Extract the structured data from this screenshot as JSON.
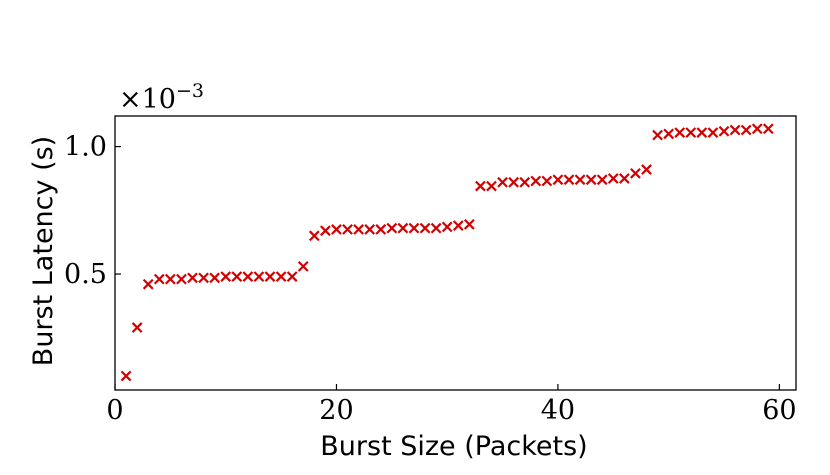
{
  "chart_data": {
    "type": "scatter",
    "title": "",
    "xlabel": "Burst Size (Packets)",
    "ylabel": "Burst Latency (s)",
    "scale_factor": "×10",
    "scale_exponent": "−3",
    "xlim": [
      0,
      61.5
    ],
    "ylim": [
      0.045,
      1.12
    ],
    "x_ticks": [
      {
        "value": 0,
        "label": "0"
      },
      {
        "value": 20,
        "label": "20"
      },
      {
        "value": 40,
        "label": "40"
      },
      {
        "value": 60,
        "label": "60"
      }
    ],
    "y_ticks": [
      {
        "value": 0.5,
        "label": "0.5"
      },
      {
        "value": 1.0,
        "label": "1.0"
      }
    ],
    "marker": "x",
    "marker_color": "#d40000",
    "grid": false,
    "legend": "none",
    "series": [
      {
        "x": [
          1,
          2,
          3,
          4,
          5,
          6,
          7,
          8,
          9,
          10,
          11,
          12,
          13,
          14,
          15,
          16,
          17,
          18,
          19,
          20,
          21,
          22,
          23,
          24,
          25,
          26,
          27,
          28,
          29,
          30,
          31,
          32,
          33,
          34,
          35,
          36,
          37,
          38,
          39,
          40,
          41,
          42,
          43,
          44,
          45,
          46,
          47,
          48,
          49,
          50,
          51,
          52,
          53,
          54,
          55,
          56,
          57,
          58,
          59
        ],
        "y": [
          0.1,
          0.29,
          0.46,
          0.48,
          0.48,
          0.48,
          0.485,
          0.485,
          0.485,
          0.49,
          0.49,
          0.49,
          0.49,
          0.49,
          0.49,
          0.49,
          0.53,
          0.65,
          0.67,
          0.675,
          0.675,
          0.675,
          0.675,
          0.675,
          0.68,
          0.68,
          0.68,
          0.68,
          0.68,
          0.685,
          0.69,
          0.695,
          0.845,
          0.845,
          0.86,
          0.86,
          0.86,
          0.865,
          0.865,
          0.87,
          0.87,
          0.87,
          0.87,
          0.87,
          0.875,
          0.875,
          0.895,
          0.91,
          1.045,
          1.05,
          1.055,
          1.055,
          1.055,
          1.055,
          1.06,
          1.065,
          1.065,
          1.07,
          1.07
        ]
      }
    ]
  }
}
